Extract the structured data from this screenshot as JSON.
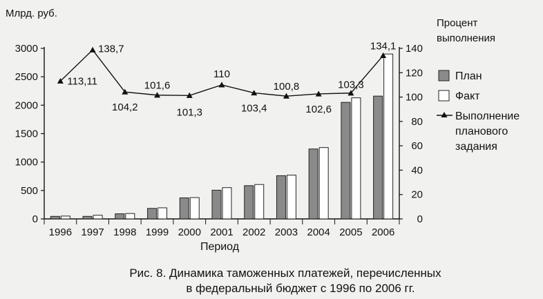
{
  "chart_data": {
    "type": "bar",
    "y_left_label": "Млрд. руб.",
    "y_right_label_lines": [
      "Процент",
      "выполнения"
    ],
    "xlabel": "Период",
    "categories": [
      "1996",
      "1997",
      "1998",
      "1999",
      "2000",
      "2001",
      "2002",
      "2003",
      "2004",
      "2005",
      "2006"
    ],
    "series": [
      {
        "name": "План",
        "kind": "bar",
        "axis": "left",
        "color": "#8a8a8a",
        "values": [
          45,
          45,
          90,
          185,
          370,
          505,
          585,
          760,
          1230,
          2050,
          2160
        ]
      },
      {
        "name": "Факт",
        "kind": "bar",
        "axis": "left",
        "color": "#ffffff",
        "values": [
          50,
          65,
          95,
          195,
          375,
          550,
          605,
          770,
          1255,
          2130,
          2900
        ]
      },
      {
        "name_lines": [
          "Выполнение",
          "планового",
          "задания"
        ],
        "kind": "line",
        "axis": "right",
        "color": "#111111",
        "values": [
          113.11,
          138.7,
          104.2,
          101.6,
          101.3,
          110,
          103.4,
          100.8,
          102.6,
          103.3,
          134.1
        ],
        "labels": [
          "113,11",
          "138,7",
          "104,2",
          "101,6",
          "101,3",
          "110",
          "103,4",
          "100,8",
          "102,6",
          "103,3",
          "134,1"
        ]
      }
    ],
    "ylim_left": [
      0,
      3000
    ],
    "yticks_left": [
      0,
      500,
      1000,
      1500,
      2000,
      2500,
      3000
    ],
    "ylim_right": [
      0,
      140
    ],
    "yticks_right": [
      0,
      20,
      40,
      60,
      80,
      100,
      120,
      140
    ],
    "legend_position": "right",
    "grid": false
  },
  "caption": {
    "line1": "Рис. 8. Динамика таможенных платежей, перечисленных",
    "line2": "в федеральный бюджет с 1996 по 2006 гг."
  }
}
